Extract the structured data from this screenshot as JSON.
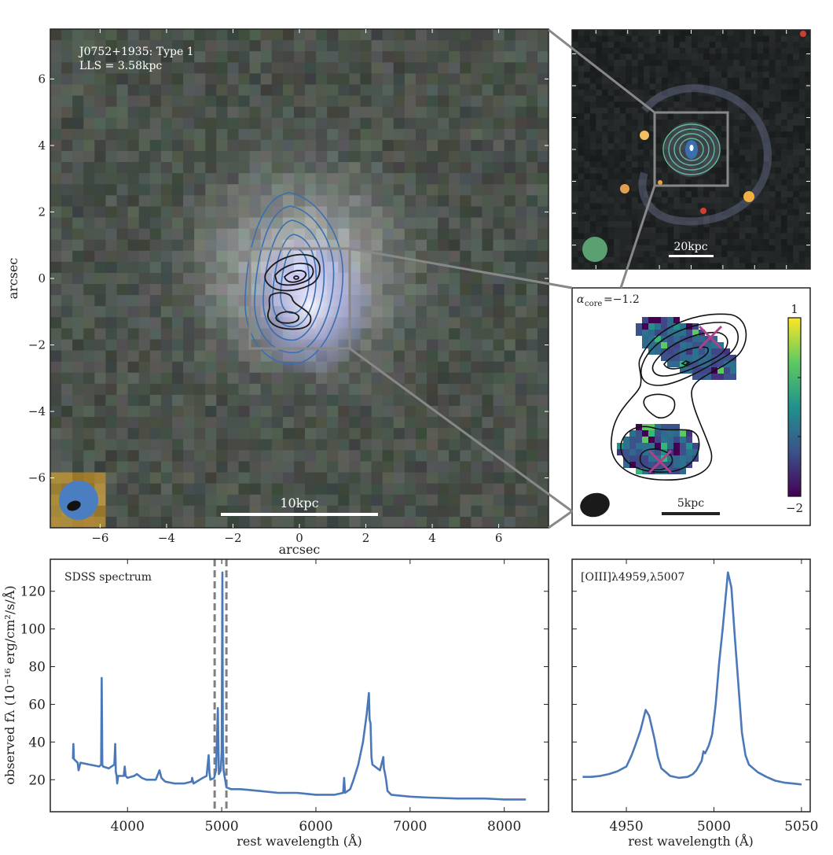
{
  "main_image": {
    "label_line1": "J0752+1935: Type 1",
    "label_line2": "LLS = 3.58kpc",
    "scalebar_label": "10kpc",
    "xlabel": "arcsec",
    "ylabel": "arcsec",
    "xticks": [
      -6,
      -4,
      -2,
      0,
      2,
      4,
      6
    ],
    "yticks": [
      -6,
      -4,
      -2,
      0,
      2,
      4,
      6
    ],
    "xlim": [
      -7.5,
      7.5
    ],
    "ylim": [
      -7.5,
      7.5
    ],
    "contour_colors": {
      "radio_low": "#3a6fb0",
      "radio_high": "#1a1a1a"
    },
    "beam_color": "#4a7ec0"
  },
  "overview_image": {
    "scalebar_label": "20kpc",
    "contour_color": "#5fbf8f",
    "beam_color": "#5aa070"
  },
  "inset_image": {
    "alpha_label": "α",
    "alpha_sub": "core",
    "alpha_value": "=−1.2",
    "scalebar_label": "5kpc",
    "colorbar": {
      "max_label": "1",
      "min_label": "−2",
      "range": [
        -2,
        1
      ],
      "colormap": "viridis"
    },
    "marker_color": "#b0408a"
  },
  "chart_data": [
    {
      "type": "line",
      "title": "SDSS spectrum",
      "xlabel": "rest wavelength (Å)",
      "ylabel": "observed fλ (10⁻¹⁶ erg/cm²/s/Å)",
      "xlim": [
        3180,
        8470
      ],
      "ylim": [
        3,
        137
      ],
      "xticks": [
        4000,
        5000,
        6000,
        7000,
        8000
      ],
      "yticks": [
        20,
        40,
        60,
        80,
        100,
        120
      ],
      "grid": false,
      "color": "#4a78b8",
      "vlines": [
        4925,
        5050
      ],
      "vline_color": "#808080",
      "x": [
        3420,
        3425,
        3430,
        3450,
        3470,
        3480,
        3500,
        3600,
        3700,
        3720,
        3726,
        3732,
        3740,
        3800,
        3860,
        3869,
        3876,
        3885,
        3890,
        3900,
        3960,
        3970,
        3980,
        4000,
        4070,
        4100,
        4150,
        4200,
        4300,
        4340,
        4360,
        4400,
        4500,
        4600,
        4680,
        4686,
        4700,
        4800,
        4840,
        4861,
        4870,
        4880,
        4920,
        4940,
        4959,
        4970,
        4990,
        5000,
        5007,
        5012,
        5020,
        5050,
        5100,
        5200,
        5400,
        5600,
        5800,
        6000,
        6200,
        6290,
        6300,
        6310,
        6364,
        6400,
        6450,
        6500,
        6540,
        6563,
        6570,
        6580,
        6590,
        6600,
        6680,
        6716,
        6722,
        6731,
        6745,
        6760,
        6800,
        7000,
        7200,
        7500,
        7800,
        8000,
        8230
      ],
      "y": [
        31,
        39,
        31,
        30,
        29,
        25,
        29,
        28,
        27,
        28,
        74,
        28,
        27,
        26,
        28,
        39,
        24,
        22,
        18,
        22,
        22,
        27,
        22,
        21,
        22,
        23,
        21,
        20,
        20,
        25,
        21,
        19,
        18,
        18,
        19,
        21,
        18,
        21,
        22,
        33,
        24,
        20,
        21,
        25,
        58,
        23,
        25,
        35,
        130,
        40,
        25,
        16,
        15,
        15,
        14,
        13,
        13,
        12,
        12,
        13,
        21,
        13,
        15,
        20,
        28,
        40,
        55,
        66,
        52,
        50,
        32,
        28,
        25,
        32,
        26,
        24,
        20,
        14,
        12,
        11,
        10.5,
        10,
        10,
        9.5,
        9.5
      ]
    },
    {
      "type": "line",
      "title": "[OIII]λ4959,λ5007",
      "xlabel": "rest wavelength (Å)",
      "xlim": [
        4919,
        5055
      ],
      "ylim": [
        3,
        137
      ],
      "xticks": [
        4950,
        5000,
        5050
      ],
      "yticks": [
        20,
        40,
        60,
        80,
        100,
        120
      ],
      "grid": false,
      "color": "#4a78b8",
      "x": [
        4925,
        4930,
        4935,
        4940,
        4945,
        4948,
        4950,
        4953,
        4955,
        4958,
        4961,
        4963,
        4966,
        4968,
        4970,
        4975,
        4980,
        4985,
        4988,
        4990,
        4993,
        4994,
        4995,
        4997,
        4999,
        5001,
        5003,
        5005,
        5008,
        5010,
        5012,
        5014,
        5016,
        5018,
        5020,
        5025,
        5030,
        5035,
        5040,
        5045,
        5050
      ],
      "y": [
        21.5,
        21.5,
        22,
        23,
        24.5,
        26,
        27,
        33,
        38,
        46,
        57,
        54,
        42,
        32,
        26,
        22,
        21,
        21.5,
        23,
        25,
        30,
        35,
        34,
        38,
        44,
        60,
        82,
        100,
        130,
        122,
        95,
        70,
        45,
        33,
        28,
        24,
        21.5,
        19.5,
        18.5,
        18,
        17.5
      ]
    }
  ]
}
